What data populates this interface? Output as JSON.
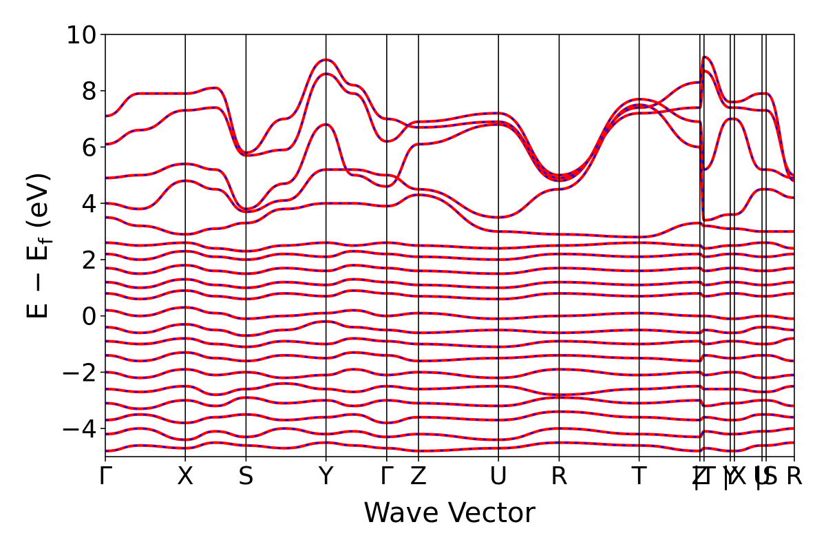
{
  "chart_data": {
    "type": "line",
    "title": "",
    "xlabel": "Wave Vector",
    "ylabel": "E − E_f (eV)",
    "ylabel_parts": {
      "main": "E − E",
      "sub": "f",
      "tail": " (eV)"
    },
    "ylim": [
      -5,
      10
    ],
    "yticks": [
      -4,
      -2,
      0,
      2,
      4,
      6,
      8,
      10
    ],
    "ytick_labels": [
      "−4",
      "−2",
      "0",
      "2",
      "4",
      "6",
      "8",
      "10"
    ],
    "x_range": [
      0,
      1
    ],
    "kpoints": [
      {
        "label": "Γ",
        "x": 0.0
      },
      {
        "label": "X",
        "x": 0.1161
      },
      {
        "label": "S",
        "x": 0.2042
      },
      {
        "label": "Y",
        "x": 0.3203
      },
      {
        "label": "Γ",
        "x": 0.4084
      },
      {
        "label": "Z",
        "x": 0.4545
      },
      {
        "label": "U",
        "x": 0.5706
      },
      {
        "label": "R",
        "x": 0.6587
      },
      {
        "label": "T",
        "x": 0.7748
      },
      {
        "label": "Z",
        "x": 0.8629
      },
      {
        "label": "|T",
        "x": 0.8689
      },
      {
        "label": "Y",
        "x": 0.907
      },
      {
        "label": "|X",
        "x": 0.913
      },
      {
        "label": "U",
        "x": 0.9531
      },
      {
        "label": "|S",
        "x": 0.9591
      },
      {
        "label": "R",
        "x": 1.0
      }
    ],
    "series_style": [
      {
        "name": "",
        "color": "#ff0000",
        "linestyle": "solid"
      },
      {
        "name": "",
        "color": "#0000ff",
        "linestyle": "dashed"
      }
    ],
    "grid": false,
    "legend": "none",
    "bands": [
      {
        "x": [
          0.0,
          0.05,
          0.1161,
          0.16,
          0.2042,
          0.26,
          0.3203,
          0.36,
          0.4084,
          0.4545,
          0.5706,
          0.6587,
          0.7748,
          0.8629,
          0.8689,
          0.907,
          0.913,
          0.9531,
          0.9591,
          1.0
        ],
        "y": [
          -4.8,
          -4.6,
          -4.7,
          -4.5,
          -4.6,
          -4.7,
          -4.5,
          -4.6,
          -4.7,
          -4.8,
          -4.7,
          -4.5,
          -4.6,
          -4.8,
          -4.7,
          -4.8,
          -4.8,
          -4.6,
          -4.6,
          -4.5
        ]
      },
      {
        "x": [
          0.0,
          0.05,
          0.1161,
          0.16,
          0.2042,
          0.26,
          0.3203,
          0.36,
          0.4084,
          0.4545,
          0.5706,
          0.6587,
          0.7748,
          0.8629,
          0.8689,
          0.907,
          0.913,
          0.9531,
          0.9591,
          1.0
        ],
        "y": [
          -4.2,
          -4.0,
          -4.4,
          -4.1,
          -4.3,
          -4.0,
          -4.2,
          -4.1,
          -4.3,
          -4.2,
          -4.4,
          -4.0,
          -4.2,
          -4.3,
          -4.1,
          -4.2,
          -4.2,
          -4.1,
          -4.1,
          -4.0
        ]
      },
      {
        "x": [
          0.0,
          0.05,
          0.1161,
          0.16,
          0.2042,
          0.26,
          0.3203,
          0.36,
          0.4084,
          0.4545,
          0.5706,
          0.6587,
          0.7748,
          0.8629,
          0.8689,
          0.907,
          0.913,
          0.9531,
          0.9591,
          1.0
        ],
        "y": [
          -3.7,
          -3.5,
          -3.8,
          -3.6,
          -3.5,
          -3.7,
          -3.6,
          -3.5,
          -3.8,
          -3.6,
          -3.7,
          -3.4,
          -3.6,
          -3.7,
          -3.6,
          -3.7,
          -3.7,
          -3.5,
          -3.5,
          -3.6
        ]
      },
      {
        "x": [
          0.0,
          0.05,
          0.1161,
          0.16,
          0.2042,
          0.26,
          0.3203,
          0.36,
          0.4084,
          0.4545,
          0.5706,
          0.6587,
          0.7748,
          0.8629,
          0.8689,
          0.907,
          0.913,
          0.9531,
          0.9591,
          1.0
        ],
        "y": [
          -3.1,
          -3.3,
          -3.0,
          -3.2,
          -2.9,
          -3.1,
          -3.0,
          -3.2,
          -3.0,
          -3.1,
          -3.2,
          -2.9,
          -3.1,
          -3.0,
          -3.2,
          -3.1,
          -3.1,
          -3.0,
          -3.0,
          -3.2
        ]
      },
      {
        "x": [
          0.0,
          0.05,
          0.1161,
          0.16,
          0.2042,
          0.26,
          0.3203,
          0.36,
          0.4084,
          0.4545,
          0.5706,
          0.6587,
          0.7748,
          0.8629,
          0.8689,
          0.907,
          0.913,
          0.9531,
          0.9591,
          1.0
        ],
        "y": [
          -2.6,
          -2.7,
          -2.5,
          -2.8,
          -2.6,
          -2.4,
          -2.6,
          -2.7,
          -2.5,
          -2.6,
          -2.5,
          -2.8,
          -2.6,
          -2.5,
          -2.6,
          -2.6,
          -2.6,
          -2.7,
          -2.7,
          -2.5
        ]
      },
      {
        "x": [
          0.0,
          0.05,
          0.1161,
          0.16,
          0.2042,
          0.26,
          0.3203,
          0.36,
          0.4084,
          0.4545,
          0.5706,
          0.6587,
          0.7748,
          0.8629,
          0.8689,
          0.907,
          0.913,
          0.9531,
          0.9591,
          1.0
        ],
        "y": [
          -2.0,
          -2.2,
          -1.9,
          -2.1,
          -2.0,
          -2.2,
          -2.1,
          -1.9,
          -2.1,
          -2.0,
          -2.2,
          -1.9,
          -2.1,
          -2.0,
          -2.1,
          -2.0,
          -2.0,
          -2.2,
          -2.2,
          -2.1
        ]
      },
      {
        "x": [
          0.0,
          0.05,
          0.1161,
          0.16,
          0.2042,
          0.26,
          0.3203,
          0.36,
          0.4084,
          0.4545,
          0.5706,
          0.6587,
          0.7748,
          0.8629,
          0.8689,
          0.907,
          0.913,
          0.9531,
          0.9591,
          1.0
        ],
        "y": [
          -1.4,
          -1.6,
          -1.3,
          -1.5,
          -1.6,
          -1.4,
          -1.5,
          -1.3,
          -1.4,
          -1.6,
          -1.5,
          -1.4,
          -1.5,
          -1.6,
          -1.4,
          -1.5,
          -1.5,
          -1.4,
          -1.4,
          -1.6
        ]
      },
      {
        "x": [
          0.0,
          0.05,
          0.1161,
          0.16,
          0.2042,
          0.26,
          0.3203,
          0.36,
          0.4084,
          0.4545,
          0.5706,
          0.6587,
          0.7748,
          0.8629,
          0.8689,
          0.907,
          0.913,
          0.9531,
          0.9591,
          1.0
        ],
        "y": [
          -0.9,
          -1.0,
          -0.8,
          -1.0,
          -1.1,
          -0.9,
          -1.0,
          -0.8,
          -0.9,
          -1.0,
          -1.1,
          -0.9,
          -1.0,
          -0.9,
          -1.0,
          -0.9,
          -0.9,
          -1.0,
          -1.0,
          -0.8
        ]
      },
      {
        "x": [
          0.0,
          0.05,
          0.1161,
          0.16,
          0.2042,
          0.26,
          0.3203,
          0.36,
          0.4084,
          0.4545,
          0.5706,
          0.6587,
          0.7748,
          0.8629,
          0.8689,
          0.907,
          0.913,
          0.9531,
          0.9591,
          1.0
        ],
        "y": [
          -0.4,
          -0.6,
          -0.3,
          -0.5,
          -0.7,
          -0.5,
          -0.2,
          -0.4,
          -0.5,
          -0.6,
          -0.5,
          -0.6,
          -0.5,
          -0.6,
          -0.5,
          -0.6,
          -0.6,
          -0.4,
          -0.4,
          -0.5
        ]
      },
      {
        "x": [
          0.0,
          0.05,
          0.1161,
          0.16,
          0.2042,
          0.26,
          0.3203,
          0.36,
          0.4084,
          0.4545,
          0.5706,
          0.6587,
          0.7748,
          0.8629,
          0.8689,
          0.907,
          0.913,
          0.9531,
          0.9591,
          1.0
        ],
        "y": [
          0.2,
          0.0,
          0.3,
          0.1,
          -0.1,
          0.0,
          0.1,
          0.2,
          0.0,
          0.1,
          -0.1,
          0.0,
          0.1,
          0.0,
          0.0,
          -0.1,
          -0.1,
          0.0,
          0.0,
          -0.1
        ]
      },
      {
        "x": [
          0.0,
          0.05,
          0.1161,
          0.16,
          0.2042,
          0.26,
          0.3203,
          0.36,
          0.4084,
          0.4545,
          0.5706,
          0.6587,
          0.7748,
          0.8629,
          0.8689,
          0.907,
          0.913,
          0.9531,
          0.9591,
          1.0
        ],
        "y": [
          0.8,
          0.6,
          0.9,
          0.7,
          0.6,
          0.8,
          0.7,
          0.9,
          0.8,
          0.7,
          0.6,
          0.8,
          0.7,
          0.8,
          0.7,
          0.8,
          0.8,
          0.7,
          0.7,
          0.8
        ]
      },
      {
        "x": [
          0.0,
          0.05,
          0.1161,
          0.16,
          0.2042,
          0.26,
          0.3203,
          0.36,
          0.4084,
          0.4545,
          0.5706,
          0.6587,
          0.7748,
          0.8629,
          0.8689,
          0.907,
          0.913,
          0.9531,
          0.9591,
          1.0
        ],
        "y": [
          1.2,
          1.0,
          1.3,
          1.1,
          1.0,
          1.2,
          1.1,
          1.3,
          1.2,
          1.1,
          1.0,
          1.2,
          1.1,
          1.2,
          1.1,
          1.2,
          1.2,
          1.1,
          1.1,
          1.2
        ]
      },
      {
        "x": [
          0.0,
          0.05,
          0.1161,
          0.16,
          0.2042,
          0.26,
          0.3203,
          0.36,
          0.4084,
          0.4545,
          0.5706,
          0.6587,
          0.7748,
          0.8629,
          0.8689,
          0.907,
          0.913,
          0.9531,
          0.9591,
          1.0
        ],
        "y": [
          1.7,
          1.5,
          1.8,
          1.6,
          1.5,
          1.7,
          1.6,
          1.8,
          1.7,
          1.6,
          1.5,
          1.7,
          1.6,
          1.7,
          1.6,
          1.7,
          1.7,
          1.6,
          1.6,
          1.7
        ]
      },
      {
        "x": [
          0.0,
          0.05,
          0.1161,
          0.16,
          0.2042,
          0.26,
          0.3203,
          0.36,
          0.4084,
          0.4545,
          0.5706,
          0.6587,
          0.7748,
          0.8629,
          0.8689,
          0.907,
          0.913,
          0.9531,
          0.9591,
          1.0
        ],
        "y": [
          2.2,
          2.0,
          2.3,
          2.1,
          2.0,
          2.2,
          2.1,
          2.3,
          2.2,
          2.1,
          2.0,
          2.2,
          2.1,
          2.2,
          2.1,
          2.2,
          2.2,
          2.1,
          2.1,
          2.2
        ]
      },
      {
        "x": [
          0.0,
          0.05,
          0.1161,
          0.16,
          0.2042,
          0.26,
          0.3203,
          0.36,
          0.4084,
          0.4545,
          0.5706,
          0.6587,
          0.7748,
          0.8629,
          0.8689,
          0.907,
          0.913,
          0.9531,
          0.9591,
          1.0
        ],
        "y": [
          2.6,
          2.5,
          2.6,
          2.4,
          2.3,
          2.5,
          2.6,
          2.5,
          2.6,
          2.5,
          2.4,
          2.5,
          2.6,
          2.5,
          2.4,
          2.5,
          2.5,
          2.6,
          2.6,
          2.4
        ]
      },
      {
        "x": [
          0.0,
          0.05,
          0.1161,
          0.16,
          0.2042,
          0.26,
          0.3203,
          0.36,
          0.4084,
          0.4545,
          0.5706,
          0.6587,
          0.7748,
          0.8629,
          0.8689,
          0.907,
          0.913,
          0.9531,
          0.9591,
          1.0
        ],
        "y": [
          3.5,
          3.2,
          2.9,
          3.1,
          3.3,
          3.8,
          4.0,
          4.0,
          3.9,
          4.3,
          3.0,
          2.9,
          2.8,
          3.3,
          3.2,
          3.1,
          3.1,
          3.0,
          3.0,
          3.0
        ]
      },
      {
        "x": [
          0.0,
          0.05,
          0.1161,
          0.16,
          0.2042,
          0.26,
          0.3203,
          0.36,
          0.4084,
          0.4545,
          0.5706,
          0.6587,
          0.7748,
          0.8629,
          0.8689,
          0.907,
          0.913,
          0.9531,
          0.9591,
          1.0
        ],
        "y": [
          4.0,
          3.8,
          4.8,
          4.5,
          3.7,
          4.1,
          5.2,
          5.2,
          5.0,
          4.5,
          3.5,
          4.5,
          7.5,
          6.0,
          3.4,
          3.6,
          3.6,
          4.5,
          4.5,
          4.2
        ]
      },
      {
        "x": [
          0.0,
          0.05,
          0.1161,
          0.16,
          0.2042,
          0.26,
          0.3203,
          0.36,
          0.4084,
          0.4545,
          0.5706,
          0.6587,
          0.7748,
          0.8629,
          0.8689,
          0.907,
          0.913,
          0.9531,
          0.9591,
          1.0
        ],
        "y": [
          4.9,
          5.0,
          5.4,
          5.2,
          3.8,
          4.7,
          6.8,
          5.0,
          4.6,
          6.1,
          6.8,
          4.8,
          7.7,
          6.9,
          5.2,
          7.0,
          7.0,
          5.2,
          5.2,
          4.9
        ]
      },
      {
        "x": [
          0.0,
          0.05,
          0.1161,
          0.16,
          0.2042,
          0.26,
          0.3203,
          0.36,
          0.4084,
          0.4545,
          0.5706,
          0.6587,
          0.7748,
          0.8629,
          0.8689,
          0.907,
          0.913,
          0.9531,
          0.9591,
          1.0
        ],
        "y": [
          6.1,
          6.6,
          7.3,
          7.4,
          5.7,
          5.9,
          8.6,
          7.9,
          6.2,
          6.9,
          7.2,
          5.0,
          7.2,
          7.4,
          8.7,
          7.4,
          7.4,
          7.3,
          7.3,
          5.0
        ]
      },
      {
        "x": [
          0.0,
          0.05,
          0.1161,
          0.16,
          0.2042,
          0.26,
          0.3203,
          0.36,
          0.4084,
          0.4545,
          0.5706,
          0.6587,
          0.7748,
          0.8629,
          0.8689,
          0.907,
          0.913,
          0.9531,
          0.9591,
          1.0
        ],
        "y": [
          7.1,
          7.9,
          7.9,
          8.1,
          5.8,
          7.0,
          9.1,
          8.2,
          7.0,
          6.7,
          6.9,
          4.9,
          7.4,
          8.3,
          9.2,
          7.6,
          7.6,
          7.9,
          7.9,
          4.8
        ]
      }
    ]
  }
}
